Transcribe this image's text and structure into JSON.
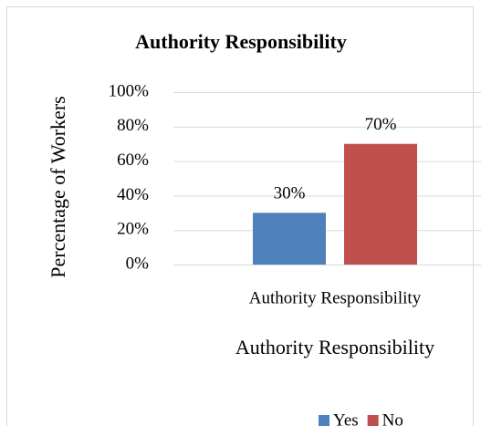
{
  "chart_data": {
    "type": "bar",
    "title": "Authority Responsibility",
    "x_label": "Authority Responsibility",
    "y_label": "Percentage of Workers",
    "categories": [
      "Authority Responsibility"
    ],
    "series": [
      {
        "name": "Yes",
        "color": "#4f81bd",
        "values": [
          30
        ],
        "value_labels": [
          "30%"
        ]
      },
      {
        "name": "No",
        "color": "#c0504d",
        "values": [
          70
        ],
        "value_labels": [
          "70%"
        ]
      }
    ],
    "ylim": [
      0,
      100
    ],
    "yticks": [
      {
        "value": 0,
        "label": "0%"
      },
      {
        "value": 20,
        "label": "20%"
      },
      {
        "value": 40,
        "label": "40%"
      },
      {
        "value": 60,
        "label": "60%"
      },
      {
        "value": 80,
        "label": "80%"
      },
      {
        "value": 100,
        "label": "100%"
      }
    ],
    "grid": true,
    "legend": "bottom"
  }
}
